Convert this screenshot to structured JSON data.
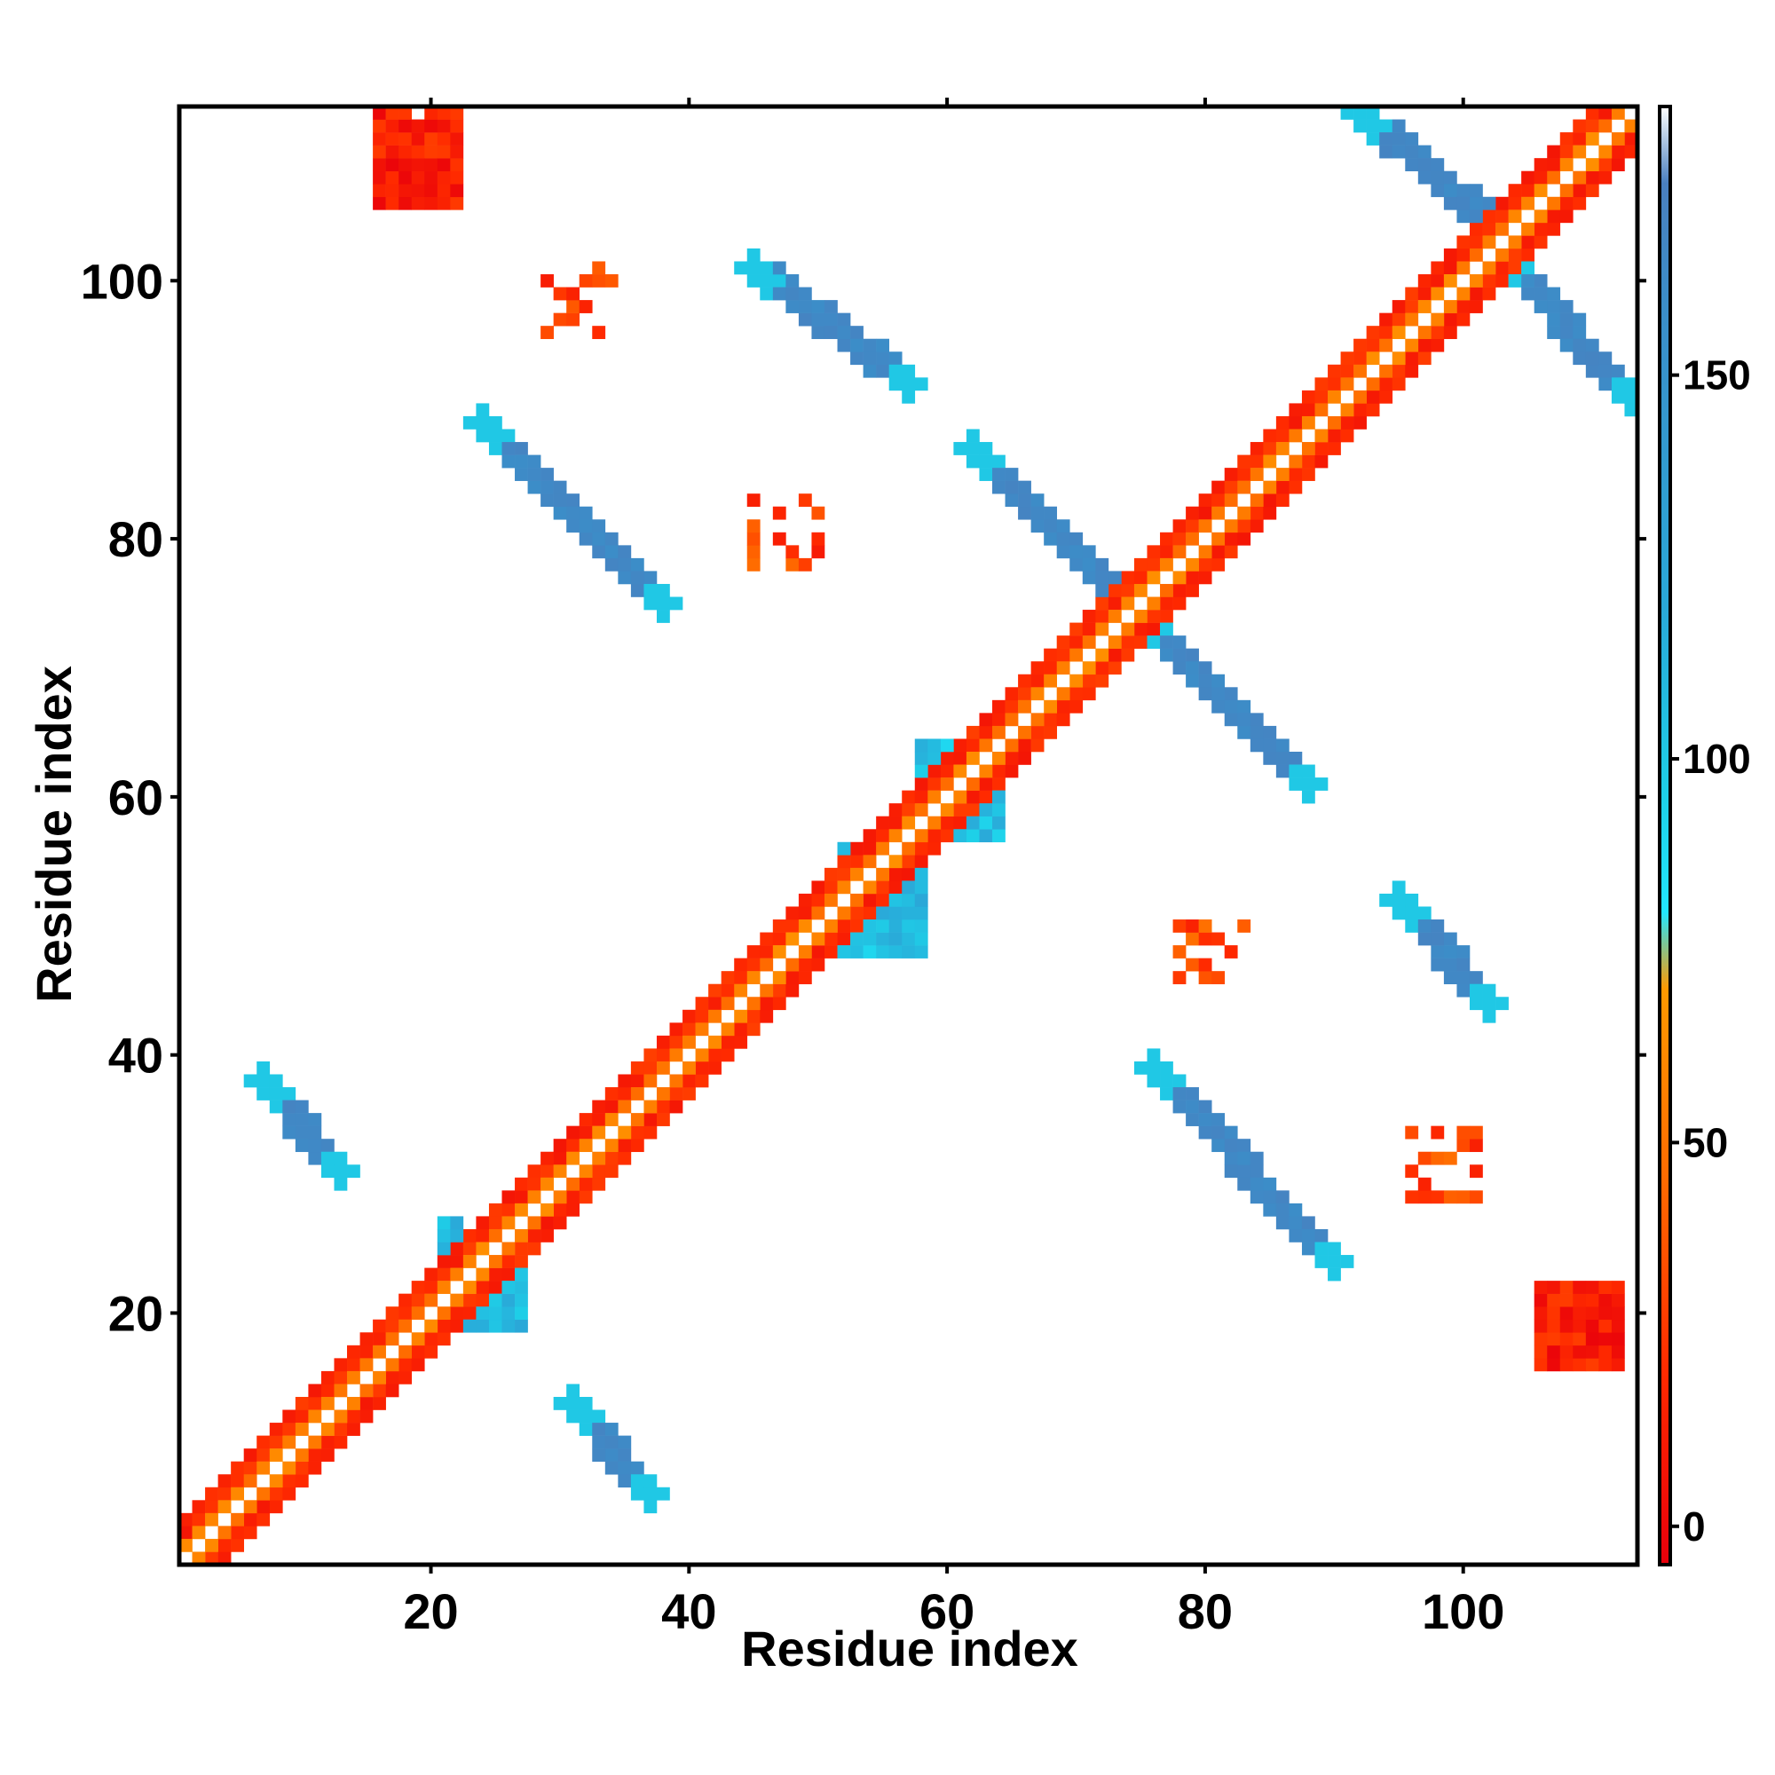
{
  "chart_data": {
    "type": "heatmap",
    "title": "",
    "xlabel": "Residue index",
    "ylabel": "Residue index",
    "xlim": [
      1,
      113
    ],
    "ylim": [
      1,
      113
    ],
    "x_ticks": [
      20,
      40,
      60,
      80,
      100
    ],
    "y_ticks": [
      20,
      40,
      60,
      80,
      100
    ],
    "grid": false,
    "colorbar": {
      "ticks": [
        0,
        50,
        100,
        150
      ],
      "range": [
        -5,
        185
      ],
      "placement": "right",
      "stops": [
        {
          "value": -5,
          "color": "#e8000b"
        },
        {
          "value": 20,
          "color": "#ff2a00"
        },
        {
          "value": 45,
          "color": "#ff6a00"
        },
        {
          "value": 70,
          "color": "#ff9900"
        },
        {
          "value": 80,
          "color": "#22e6ff"
        },
        {
          "value": 95,
          "color": "#1ed0e8"
        },
        {
          "value": 120,
          "color": "#2aa8d8"
        },
        {
          "value": 160,
          "color": "#3c8dc8"
        },
        {
          "value": 175,
          "color": "#4a7fbf"
        },
        {
          "value": 185,
          "color": "#ffffff"
        }
      ]
    },
    "cells_note_keys": [
      "value_by_band"
    ],
    "bands": {
      "red": 8,
      "orange": 45,
      "amber": 70,
      "cyan": 100,
      "blue": 165
    },
    "regions": [
      {
        "band": "red",
        "x": [
          1,
          113
        ],
        "y_offset": [
          2,
          3
        ],
        "kind": "diagonal"
      },
      {
        "band": "orange",
        "x": [
          1,
          113
        ],
        "y_offset": [
          1,
          2
        ],
        "kind": "diagonal"
      },
      {
        "band": "blue",
        "x": [
          24,
          38
        ],
        "y": [
          75,
          89
        ],
        "kind": "antidiagonal"
      },
      {
        "band": "blue",
        "x": [
          62,
          75
        ],
        "y": [
          74,
          87
        ],
        "kind": "antidiagonal"
      },
      {
        "band": "blue",
        "x": [
          75,
          88
        ],
        "y": [
          61,
          74
        ],
        "kind": "antidiagonal"
      },
      {
        "band": "blue",
        "x": [
          76,
          90
        ],
        "y": [
          24,
          39
        ],
        "kind": "antidiagonal"
      },
      {
        "band": "blue",
        "x": [
          45,
          57
        ],
        "y": [
          92,
          101
        ],
        "kind": "antidiagonal"
      },
      {
        "band": "blue",
        "x": [
          92,
          103
        ],
        "y": [
          104,
          113
        ],
        "kind": "antidiagonal"
      },
      {
        "band": "blue",
        "x": [
          103,
          113
        ],
        "y": [
          91,
          102
        ],
        "kind": "antidiagonal"
      },
      {
        "band": "blue",
        "x": [
          95,
          102
        ],
        "y": [
          44,
          52
        ],
        "kind": "antidiagonal"
      },
      {
        "band": "blue",
        "x": [
          7,
          13
        ],
        "y": [
          31,
          38
        ],
        "kind": "antidiagonal"
      },
      {
        "band": "blue",
        "x": [
          31,
          37
        ],
        "y": [
          6,
          13
        ],
        "kind": "antidiagonal"
      },
      {
        "band": "cyan",
        "x": [
          52,
          58
        ],
        "y": [
          48,
          56
        ],
        "kind": "block"
      },
      {
        "band": "cyan",
        "x": [
          58,
          64
        ],
        "y": [
          57,
          64
        ],
        "kind": "block"
      },
      {
        "band": "cyan",
        "x": [
          21,
          27
        ],
        "y": [
          19,
          27
        ],
        "kind": "block"
      },
      {
        "band": "red",
        "x": [
          16,
          22
        ],
        "y": [
          106,
          113
        ],
        "kind": "block"
      },
      {
        "band": "red",
        "x": [
          106,
          112
        ],
        "y": [
          16,
          22
        ],
        "kind": "block"
      },
      {
        "band": "red",
        "x": [
          29,
          34
        ],
        "y": [
          96,
          101
        ],
        "kind": "spot"
      },
      {
        "band": "red",
        "x": [
          45,
          50
        ],
        "y": [
          78,
          83
        ],
        "kind": "spot"
      },
      {
        "band": "red",
        "x": [
          78,
          83
        ],
        "y": [
          46,
          50
        ],
        "kind": "spot"
      },
      {
        "band": "red",
        "x": [
          96,
          101
        ],
        "y": [
          29,
          34
        ],
        "kind": "spot"
      }
    ]
  }
}
